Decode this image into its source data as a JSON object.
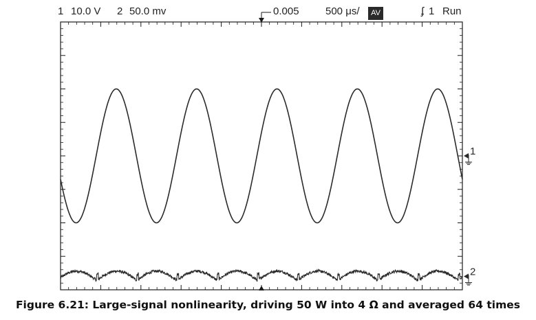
{
  "status_bar": {
    "ch1_number": "1",
    "ch1_scale": "10.0 V",
    "ch2_number": "2",
    "ch2_scale": "50.0 mv",
    "trigger_level": "0.005",
    "timebase": "500 μs/",
    "acquire_mode": "AV",
    "trigger_source": "1",
    "run_state": "Run"
  },
  "caption": "Figure 6.21: Large-signal nonlinearity, driving 50 W into 4 Ω and averaged 64 times",
  "colors": {
    "trace": "#2a2a2a",
    "graticule": "#1a1a1a",
    "background": "#ffffff"
  },
  "chart_data": {
    "type": "line",
    "title": "",
    "xlabel": "",
    "ylabel": "",
    "x_divisions": 10,
    "y_divisions": 8,
    "x_unit": "μs",
    "xlim": [
      0,
      5000
    ],
    "time_per_div_us": 500,
    "grid": false,
    "series": [
      {
        "name": "1",
        "volts_per_div": 10.0,
        "marker_label": "1",
        "waveform": "sine",
        "frequency_hz": 1000,
        "amplitude_div": 2.0,
        "offset_div": 0.0,
        "start_value_div": -0.7,
        "start_slope": "falling"
      },
      {
        "name": "2",
        "volts_per_div": 0.05,
        "marker_label": "2",
        "waveform": "distortion residual, sawtooth-like with step at each half cycle",
        "frequency_hz": 2000,
        "amplitude_div": 0.35,
        "offset_div": -3.6,
        "noisy": true
      }
    ]
  }
}
